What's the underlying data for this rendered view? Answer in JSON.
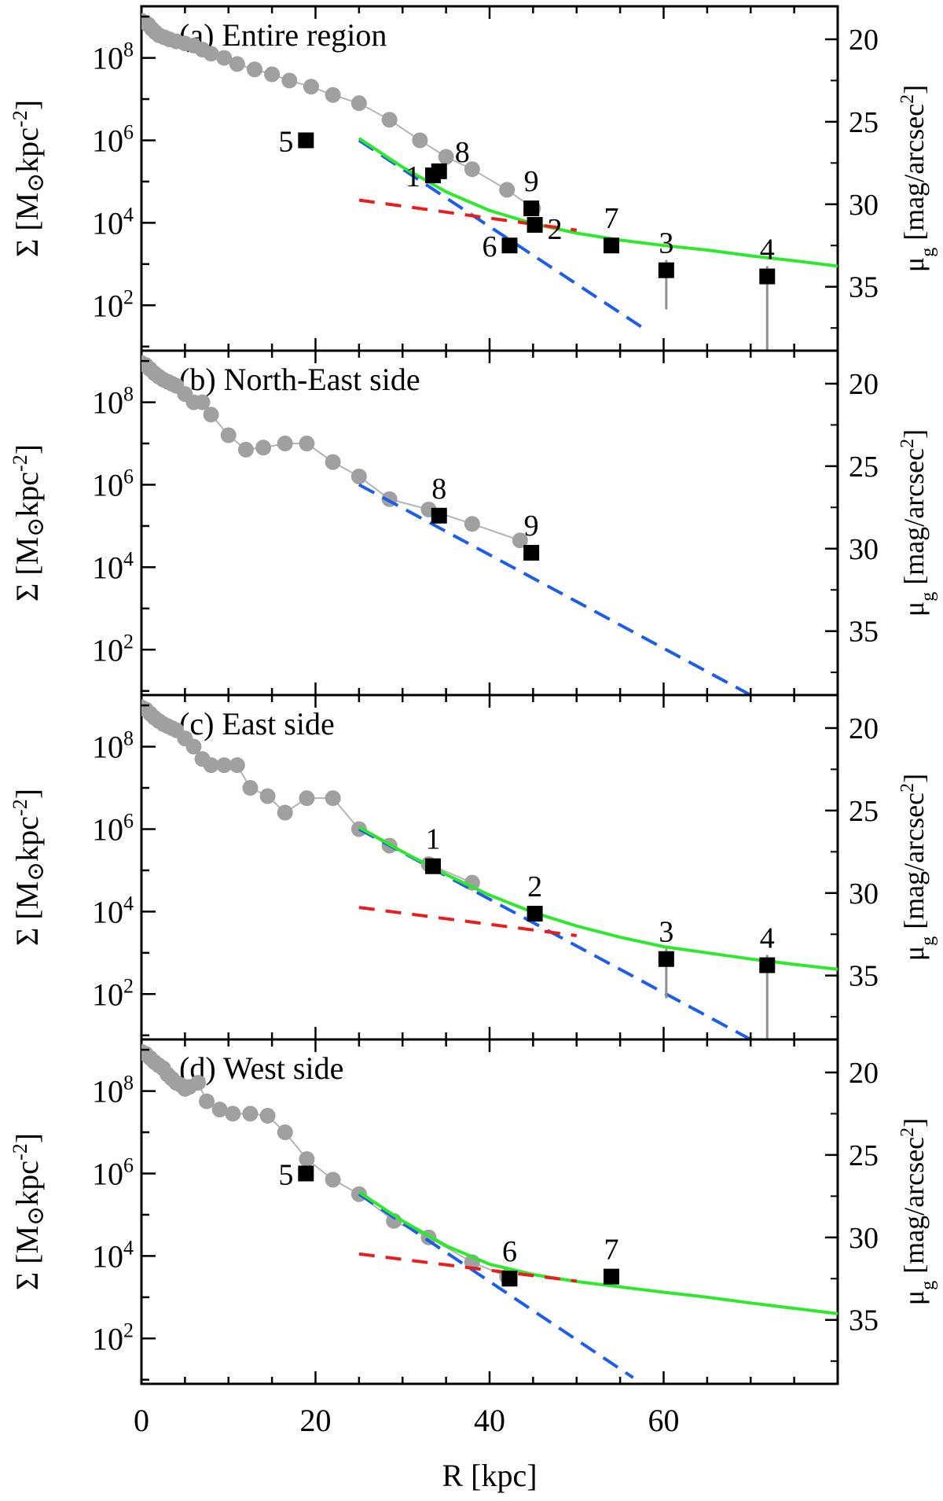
{
  "chart_data": {
    "type": "scatter",
    "x_axis": {
      "label": "R [kpc]",
      "range": [
        0,
        80
      ],
      "ticks": [
        0,
        20,
        40,
        60
      ]
    },
    "y_axis_left": {
      "label_parts": [
        "Σ [M",
        "kpc",
        "-2",
        "]"
      ],
      "label_symbol": "sun-symbol",
      "range_log10": [
        0.9,
        9.25
      ],
      "tick_mantissa": "10",
      "tick_exponents": [
        "2",
        "4",
        "6",
        "8"
      ]
    },
    "y_axis_right": {
      "label_parts": [
        "μ",
        "g",
        " [mag/arcsec",
        "2",
        "]"
      ],
      "ticks": [
        "20",
        "25",
        "30",
        "35"
      ],
      "tick_log10_positions": [
        8.45,
        6.45,
        4.45,
        2.45
      ]
    },
    "colors": {
      "profile": "#a0a0a0",
      "profile_line": "#b4b4b4",
      "inner_fit": "#1e5ee6",
      "outer_fit": "#e81e1e",
      "total_fit": "#2ee82e",
      "points": "#000000"
    },
    "panels": [
      {
        "label": "(a) Entire region",
        "profile": [
          [
            0,
            8.9
          ],
          [
            0.5,
            8.85
          ],
          [
            0.8,
            8.8
          ],
          [
            1.2,
            8.7
          ],
          [
            1.6,
            8.62
          ],
          [
            2,
            8.55
          ],
          [
            2.6,
            8.5
          ],
          [
            3.2,
            8.45
          ],
          [
            4,
            8.4
          ],
          [
            5,
            8.35
          ],
          [
            6,
            8.3
          ],
          [
            7,
            8.2
          ],
          [
            8,
            8.1
          ],
          [
            9.5,
            8.0
          ],
          [
            11,
            7.85
          ],
          [
            13,
            7.72
          ],
          [
            15,
            7.6
          ],
          [
            17,
            7.45
          ],
          [
            19.5,
            7.3
          ],
          [
            22,
            7.1
          ],
          [
            25,
            6.9
          ],
          [
            28.5,
            6.5
          ],
          [
            32,
            6.0
          ],
          [
            35,
            5.6
          ],
          [
            38,
            5.3
          ],
          [
            42,
            4.8
          ],
          [
            45,
            4.35
          ]
        ],
        "inner_fit": [
          [
            25,
            6.0
          ],
          [
            58,
            1.4
          ]
        ],
        "outer_fit": [
          [
            25,
            4.55
          ],
          [
            80,
            2.95
          ]
        ],
        "total_fit": [
          [
            25,
            6.05
          ],
          [
            30,
            5.35
          ],
          [
            35,
            4.75
          ],
          [
            40,
            4.3
          ],
          [
            45,
            3.98
          ],
          [
            50,
            3.75
          ],
          [
            55,
            3.58
          ],
          [
            60,
            3.45
          ],
          [
            65,
            3.34
          ],
          [
            70,
            3.2
          ],
          [
            75,
            3.08
          ],
          [
            80,
            2.95
          ]
        ],
        "points": [
          {
            "id": "1",
            "x": 33.5,
            "y": 5.15,
            "lo": 5.15,
            "hi": 5.15,
            "lpos": "left"
          },
          {
            "id": "8",
            "x": 34.2,
            "y": 5.25,
            "lo": 5.25,
            "hi": 5.25,
            "lpos": "upper-right"
          },
          {
            "id": "9",
            "x": 44.8,
            "y": 4.35,
            "lo": 4.35,
            "hi": 4.35,
            "lpos": "above"
          },
          {
            "id": "2",
            "x": 45.2,
            "y": 3.95,
            "lo": 3.95,
            "hi": 3.95,
            "lpos": "right"
          },
          {
            "id": "6",
            "x": 42.3,
            "y": 3.45,
            "lo": 3.45,
            "hi": 3.45,
            "lpos": "left"
          },
          {
            "id": "7",
            "x": 54,
            "y": 3.45,
            "lo": 3.45,
            "hi": 3.45,
            "lpos": "above"
          },
          {
            "id": "3",
            "x": 60.3,
            "y": 2.85,
            "lo": 1.9,
            "hi": 3.1,
            "lpos": "above"
          },
          {
            "id": "4",
            "x": 71.9,
            "y": 2.7,
            "lo": 0.9,
            "hi": 2.95,
            "lpos": "above"
          },
          {
            "id": "5",
            "x": 18.9,
            "y": 6.0,
            "lo": 6.0,
            "hi": 6.0,
            "lpos": "left"
          }
        ]
      },
      {
        "label": "(b) North-East side",
        "profile": [
          [
            0,
            8.95
          ],
          [
            0.5,
            8.9
          ],
          [
            1,
            8.8
          ],
          [
            1.5,
            8.7
          ],
          [
            2,
            8.62
          ],
          [
            2.5,
            8.55
          ],
          [
            3,
            8.5
          ],
          [
            3.5,
            8.45
          ],
          [
            4,
            8.4
          ],
          [
            5,
            8.2
          ],
          [
            6,
            8.0
          ],
          [
            7,
            8.0
          ],
          [
            8,
            7.7
          ],
          [
            10,
            7.2
          ],
          [
            12,
            6.85
          ],
          [
            14,
            6.9
          ],
          [
            16.5,
            7.0
          ],
          [
            19,
            7.0
          ],
          [
            22,
            6.55
          ],
          [
            25,
            6.2
          ],
          [
            28.5,
            5.65
          ],
          [
            33,
            5.4
          ],
          [
            38,
            5.05
          ],
          [
            43.5,
            4.65
          ]
        ],
        "inner_fit": [
          [
            25,
            6.0
          ],
          [
            70,
            0.9
          ]
        ],
        "outer_fit": [],
        "total_fit": [],
        "points": [
          {
            "id": "8",
            "x": 34.2,
            "y": 5.25,
            "lo": 5.25,
            "hi": 5.25,
            "lpos": "above"
          },
          {
            "id": "9",
            "x": 44.8,
            "y": 4.35,
            "lo": 4.35,
            "hi": 4.35,
            "lpos": "above"
          }
        ]
      },
      {
        "label": "(c) East side",
        "profile": [
          [
            0,
            8.95
          ],
          [
            0.5,
            8.9
          ],
          [
            1,
            8.8
          ],
          [
            1.5,
            8.7
          ],
          [
            2,
            8.62
          ],
          [
            2.5,
            8.55
          ],
          [
            3,
            8.5
          ],
          [
            3.5,
            8.45
          ],
          [
            4,
            8.4
          ],
          [
            5,
            8.2
          ],
          [
            6,
            8.0
          ],
          [
            7,
            7.7
          ],
          [
            8,
            7.55
          ],
          [
            9.5,
            7.55
          ],
          [
            11,
            7.55
          ],
          [
            12.5,
            7.0
          ],
          [
            14.5,
            6.8
          ],
          [
            16.5,
            6.4
          ],
          [
            19,
            6.75
          ],
          [
            22,
            6.75
          ],
          [
            25,
            6.0
          ],
          [
            28.5,
            5.6
          ],
          [
            33,
            5.15
          ],
          [
            38,
            4.7
          ]
        ],
        "inner_fit": [
          [
            25,
            6.0
          ],
          [
            70,
            0.9
          ]
        ],
        "outer_fit": [
          [
            25,
            4.1
          ],
          [
            80,
            2.6
          ]
        ],
        "total_fit": [
          [
            25,
            6.05
          ],
          [
            30,
            5.45
          ],
          [
            35,
            4.9
          ],
          [
            40,
            4.4
          ],
          [
            45,
            3.98
          ],
          [
            50,
            3.65
          ],
          [
            55,
            3.38
          ],
          [
            60,
            3.15
          ],
          [
            65,
            3.0
          ],
          [
            70,
            2.85
          ],
          [
            75,
            2.72
          ],
          [
            80,
            2.6
          ]
        ],
        "points": [
          {
            "id": "1",
            "x": 33.5,
            "y": 5.1,
            "lo": 5.1,
            "hi": 5.1,
            "lpos": "above"
          },
          {
            "id": "2",
            "x": 45.2,
            "y": 3.95,
            "lo": 3.95,
            "hi": 3.95,
            "lpos": "above"
          },
          {
            "id": "3",
            "x": 60.3,
            "y": 2.85,
            "lo": 1.9,
            "hi": 3.1,
            "lpos": "above"
          },
          {
            "id": "4",
            "x": 71.9,
            "y": 2.7,
            "lo": 0.9,
            "hi": 2.95,
            "lpos": "above"
          }
        ]
      },
      {
        "label": "(d) West side",
        "profile": [
          [
            0,
            8.95
          ],
          [
            0.5,
            8.9
          ],
          [
            1,
            8.8
          ],
          [
            1.5,
            8.7
          ],
          [
            2,
            8.62
          ],
          [
            2.5,
            8.55
          ],
          [
            3,
            8.4
          ],
          [
            3.5,
            8.3
          ],
          [
            4,
            8.2
          ],
          [
            4.5,
            8.15
          ],
          [
            5,
            8.05
          ],
          [
            5.5,
            8.1
          ],
          [
            6.5,
            8.2
          ],
          [
            7.5,
            7.75
          ],
          [
            9,
            7.55
          ],
          [
            10.5,
            7.45
          ],
          [
            12.5,
            7.45
          ],
          [
            14.5,
            7.4
          ],
          [
            16.5,
            7.0
          ],
          [
            19,
            6.35
          ],
          [
            22,
            5.85
          ],
          [
            25,
            5.5
          ],
          [
            29,
            4.85
          ],
          [
            33,
            4.45
          ],
          [
            38,
            3.85
          ],
          [
            42,
            3.5
          ]
        ],
        "inner_fit": [
          [
            25,
            5.5
          ],
          [
            56.5,
            1.05
          ]
        ],
        "outer_fit": [
          [
            25,
            4.05
          ],
          [
            80,
            2.6
          ]
        ],
        "total_fit": [
          [
            25,
            5.55
          ],
          [
            30,
            4.85
          ],
          [
            35,
            4.25
          ],
          [
            40,
            3.8
          ],
          [
            45,
            3.55
          ],
          [
            50,
            3.38
          ],
          [
            55,
            3.25
          ],
          [
            60,
            3.12
          ],
          [
            65,
            3.0
          ],
          [
            70,
            2.86
          ],
          [
            75,
            2.73
          ],
          [
            80,
            2.6
          ]
        ],
        "points": [
          {
            "id": "5",
            "x": 18.9,
            "y": 6.0,
            "lo": 6.0,
            "hi": 6.0,
            "lpos": "left"
          },
          {
            "id": "6",
            "x": 42.3,
            "y": 3.45,
            "lo": 3.45,
            "hi": 3.45,
            "lpos": "above"
          },
          {
            "id": "7",
            "x": 54,
            "y": 3.5,
            "lo": 3.5,
            "hi": 3.5,
            "lpos": "above"
          }
        ]
      }
    ]
  }
}
